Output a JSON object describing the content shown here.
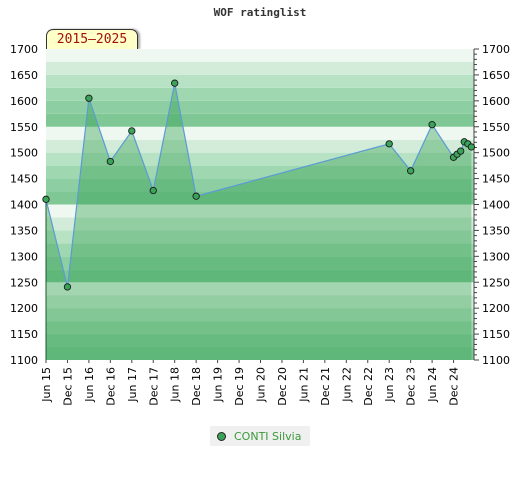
{
  "title": "WOF ratinglist",
  "range_badge": "2015–2025",
  "colors": {
    "line": "#5b9bd5",
    "fill": "#2e9b4a",
    "marker": "#3aa35a",
    "legend_text": "#3a9a3a"
  },
  "chart_data": {
    "type": "line",
    "title": "WOF ratinglist",
    "xlabel": "",
    "ylabel": "",
    "ylim": [
      1100,
      1700
    ],
    "y_ticks": [
      1100,
      1150,
      1200,
      1250,
      1300,
      1350,
      1400,
      1450,
      1500,
      1550,
      1600,
      1650,
      1700
    ],
    "x_tick_labels": [
      "Jun 15",
      "Dec 15",
      "Jun 16",
      "Dec 16",
      "Jun 17",
      "Dec 17",
      "Jun 18",
      "Dec 18",
      "Jun 19",
      "Dec 19",
      "Jun 20",
      "Dec 20",
      "Jun 21",
      "Dec 21",
      "Jun 22",
      "Dec 22",
      "Jun 23",
      "Dec 23",
      "Jun 24",
      "Dec 24"
    ],
    "legend_position": "bottom-center",
    "grid": false,
    "series": [
      {
        "name": "CONTI Silvia",
        "x": [
          "Jun 15",
          "Dec 15",
          "Jun 16",
          "Dec 16",
          "Jun 17",
          "Dec 17",
          "Jun 18",
          "Dec 18",
          "Jun 23",
          "Dec 23",
          "Jun 24",
          "Dec 24",
          "Jan 25",
          "Feb 25",
          "Mar 25",
          "Apr 25",
          "May 25"
        ],
        "values": [
          1410,
          1241,
          1605,
          1483,
          1542,
          1427,
          1634,
          1416,
          1517,
          1465,
          1554,
          1491,
          1497,
          1503,
          1521,
          1517,
          1511
        ]
      }
    ]
  }
}
